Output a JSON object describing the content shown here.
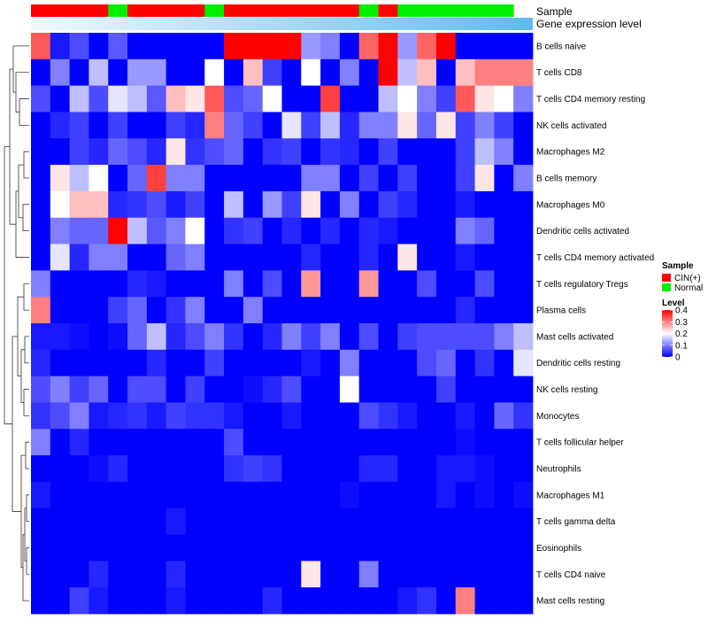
{
  "chart_data": {
    "type": "heatmap",
    "title": "",
    "annotation_tracks": [
      "Sample",
      "Gene expression level"
    ],
    "sample_groups": [
      "CIN(+)",
      "Normal",
      "CIN(+)",
      "Normal",
      "CIN(+)",
      "Normal",
      "CIN(+)",
      "Normal"
    ],
    "sample_group_counts": [
      4,
      1,
      4,
      1,
      7,
      1,
      1,
      6
    ],
    "rows": [
      "B cells naive",
      "T cells CD8",
      "T cells CD4 memory resting",
      "NK cells activated",
      "Macrophages M2",
      "B cells memory",
      "Macrophages M0",
      "Dendritic cells activated",
      "T cells CD4 memory activated",
      "T cells regulatory  Tregs",
      "Plasma cells",
      "Mast cells activated",
      "Dendritic cells resting",
      "NK cells resting",
      "Monocytes",
      "T cells follicular helper",
      "Neutrophils",
      "Macrophages M1",
      "T cells gamma delta",
      "Eosinophils",
      "T cells CD4 naive",
      "Mast cells resting"
    ],
    "values": [
      [
        0.33,
        0.02,
        0.06,
        0.0,
        0.07,
        0.0,
        0.0,
        0.0,
        0.0,
        0.0,
        0.4,
        0.4,
        0.4,
        0.4,
        0.12,
        0.1,
        0.0,
        0.32,
        0.4,
        0.12,
        0.32,
        0.4,
        0.0,
        0.0,
        0.0,
        0.0
      ],
      [
        0.0,
        0.1,
        0.0,
        0.15,
        0.0,
        0.12,
        0.12,
        0.0,
        0.0,
        0.2,
        0.0,
        0.25,
        0.05,
        0.0,
        0.2,
        0.0,
        0.1,
        0.0,
        0.4,
        0.15,
        0.25,
        0.0,
        0.25,
        0.3,
        0.3,
        0.3
      ],
      [
        0.06,
        0.0,
        0.15,
        0.06,
        0.18,
        0.15,
        0.07,
        0.25,
        0.22,
        0.33,
        0.06,
        0.08,
        0.2,
        0.0,
        0.0,
        0.35,
        0.0,
        0.0,
        0.15,
        0.2,
        0.1,
        0.05,
        0.33,
        0.22,
        0.2,
        0.1
      ],
      [
        0.0,
        0.03,
        0.05,
        0.0,
        0.05,
        0.0,
        0.0,
        0.05,
        0.03,
        0.3,
        0.08,
        0.05,
        0.0,
        0.18,
        0.05,
        0.15,
        0.03,
        0.1,
        0.1,
        0.22,
        0.08,
        0.22,
        0.05,
        0.1,
        0.05,
        0.0
      ],
      [
        0.0,
        0.0,
        0.05,
        0.03,
        0.08,
        0.06,
        0.03,
        0.22,
        0.04,
        0.06,
        0.08,
        0.0,
        0.04,
        0.05,
        0.0,
        0.04,
        0.03,
        0.0,
        0.05,
        0.0,
        0.0,
        0.0,
        0.05,
        0.15,
        0.1,
        0.0
      ],
      [
        0.0,
        0.22,
        0.15,
        0.2,
        0.0,
        0.08,
        0.35,
        0.1,
        0.1,
        0.0,
        0.0,
        0.0,
        0.0,
        0.0,
        0.1,
        0.1,
        0.0,
        0.05,
        0.0,
        0.05,
        0.0,
        0.0,
        0.05,
        0.22,
        0.0,
        0.1
      ],
      [
        0.0,
        0.2,
        0.25,
        0.25,
        0.03,
        0.04,
        0.06,
        0.02,
        0.05,
        0.0,
        0.15,
        0.0,
        0.12,
        0.05,
        0.22,
        0.0,
        0.1,
        0.0,
        0.05,
        0.03,
        0.0,
        0.0,
        0.02,
        0.0,
        0.0,
        0.0
      ],
      [
        0.0,
        0.1,
        0.08,
        0.08,
        0.4,
        0.15,
        0.07,
        0.1,
        0.2,
        0.0,
        0.04,
        0.05,
        0.0,
        0.03,
        0.0,
        0.03,
        0.0,
        0.03,
        0.02,
        0.0,
        0.0,
        0.0,
        0.1,
        0.08,
        0.0,
        0.0
      ],
      [
        0.0,
        0.18,
        0.03,
        0.1,
        0.1,
        0.0,
        0.0,
        0.08,
        0.1,
        0.0,
        0.0,
        0.0,
        0.0,
        0.0,
        0.03,
        0.0,
        0.0,
        0.03,
        0.0,
        0.22,
        0.0,
        0.0,
        0.02,
        0.0,
        0.0,
        0.0
      ],
      [
        0.1,
        0.0,
        0.0,
        0.0,
        0.0,
        0.03,
        0.02,
        0.0,
        0.0,
        0.0,
        0.1,
        0.0,
        0.06,
        0.0,
        0.28,
        0.0,
        0.0,
        0.28,
        0.0,
        0.0,
        0.06,
        0.0,
        0.0,
        0.06,
        0.0,
        0.0
      ],
      [
        0.3,
        0.0,
        0.0,
        0.0,
        0.05,
        0.08,
        0.0,
        0.04,
        0.1,
        0.0,
        0.0,
        0.1,
        0.0,
        0.0,
        0.0,
        0.0,
        0.0,
        0.0,
        0.0,
        0.0,
        0.0,
        0.0,
        0.03,
        0.0,
        0.0,
        0.0
      ],
      [
        0.02,
        0.02,
        0.01,
        0.0,
        0.01,
        0.08,
        0.15,
        0.03,
        0.06,
        0.1,
        0.04,
        0.0,
        0.03,
        0.1,
        0.05,
        0.1,
        0.0,
        0.06,
        0.0,
        0.05,
        0.06,
        0.06,
        0.06,
        0.06,
        0.1,
        0.15
      ],
      [
        0.03,
        0.0,
        0.0,
        0.0,
        0.0,
        0.0,
        0.03,
        0.0,
        0.0,
        0.05,
        0.0,
        0.0,
        0.0,
        0.0,
        0.02,
        0.0,
        0.1,
        0.0,
        0.0,
        0.0,
        0.06,
        0.08,
        0.0,
        0.04,
        0.0,
        0.18
      ],
      [
        0.06,
        0.1,
        0.05,
        0.08,
        0.0,
        0.06,
        0.06,
        0.0,
        0.05,
        0.0,
        0.0,
        0.01,
        0.03,
        0.06,
        0.0,
        0.0,
        0.2,
        0.0,
        0.0,
        0.0,
        0.0,
        0.05,
        0.0,
        0.0,
        0.0,
        0.0
      ],
      [
        0.04,
        0.06,
        0.1,
        0.02,
        0.03,
        0.04,
        0.02,
        0.05,
        0.04,
        0.04,
        0.02,
        0.0,
        0.0,
        0.02,
        0.0,
        0.0,
        0.0,
        0.06,
        0.04,
        0.02,
        0.0,
        0.0,
        0.02,
        0.0,
        0.08,
        0.04
      ],
      [
        0.1,
        0.0,
        0.03,
        0.0,
        0.0,
        0.0,
        0.0,
        0.0,
        0.0,
        0.0,
        0.06,
        0.0,
        0.0,
        0.0,
        0.0,
        0.0,
        0.0,
        0.0,
        0.0,
        0.0,
        0.0,
        0.0,
        0.01,
        0.0,
        0.0,
        0.0
      ],
      [
        0.0,
        0.0,
        0.0,
        0.01,
        0.03,
        0.0,
        0.0,
        0.0,
        0.0,
        0.0,
        0.04,
        0.05,
        0.04,
        0.0,
        0.0,
        0.0,
        0.0,
        0.03,
        0.03,
        0.0,
        0.0,
        0.02,
        0.02,
        0.01,
        0.0,
        0.0
      ],
      [
        0.02,
        0.0,
        0.0,
        0.0,
        0.0,
        0.0,
        0.0,
        0.0,
        0.0,
        0.0,
        0.0,
        0.0,
        0.0,
        0.0,
        0.0,
        0.0,
        0.01,
        0.0,
        0.0,
        0.0,
        0.0,
        0.02,
        0.0,
        0.01,
        0.0,
        0.01
      ],
      [
        0.0,
        0.0,
        0.0,
        0.0,
        0.0,
        0.0,
        0.0,
        0.02,
        0.0,
        0.0,
        0.0,
        0.0,
        0.0,
        0.0,
        0.0,
        0.0,
        0.0,
        0.0,
        0.0,
        0.0,
        0.0,
        0.0,
        0.0,
        0.0,
        0.0,
        0.0
      ],
      [
        0.0,
        0.0,
        0.0,
        0.0,
        0.0,
        0.0,
        0.0,
        0.0,
        0.0,
        0.0,
        0.0,
        0.0,
        0.0,
        0.0,
        0.0,
        0.0,
        0.0,
        0.0,
        0.0,
        0.0,
        0.0,
        0.0,
        0.0,
        0.0,
        0.0,
        0.0
      ],
      [
        0.0,
        0.0,
        0.0,
        0.03,
        0.0,
        0.0,
        0.0,
        0.03,
        0.0,
        0.0,
        0.0,
        0.0,
        0.0,
        0.0,
        0.22,
        0.0,
        0.0,
        0.1,
        0.0,
        0.0,
        0.0,
        0.0,
        0.0,
        0.0,
        0.0,
        0.0
      ],
      [
        0.0,
        0.0,
        0.05,
        0.02,
        0.0,
        0.0,
        0.0,
        0.02,
        0.0,
        0.0,
        0.0,
        0.0,
        0.03,
        0.0,
        0.0,
        0.0,
        0.0,
        0.0,
        0.0,
        0.02,
        0.04,
        0.0,
        0.3,
        0.0,
        0.0,
        0.0
      ]
    ],
    "color_scale": {
      "min": 0,
      "max": 0.4,
      "low": "#0000ff",
      "mid": "#ffffff",
      "high": "#ff0000",
      "mid_value": 0.2
    },
    "legend_sample": {
      "title": "Sample",
      "entries": [
        {
          "label": "CIN(+)",
          "color": "#ff0000"
        },
        {
          "label": "Normal",
          "color": "#00ee00"
        }
      ]
    },
    "legend_level": {
      "title": "Level",
      "ticks": [
        "0.4",
        "0.3",
        "0.2",
        "0.1",
        "0"
      ],
      "tick_values": [
        0.4,
        0.3,
        0.2,
        0.1,
        0
      ]
    },
    "expression_gradient": {
      "from": "#f2f8fc",
      "to": "#5fbbec"
    },
    "dendrogram": "hierarchical row clustering"
  }
}
